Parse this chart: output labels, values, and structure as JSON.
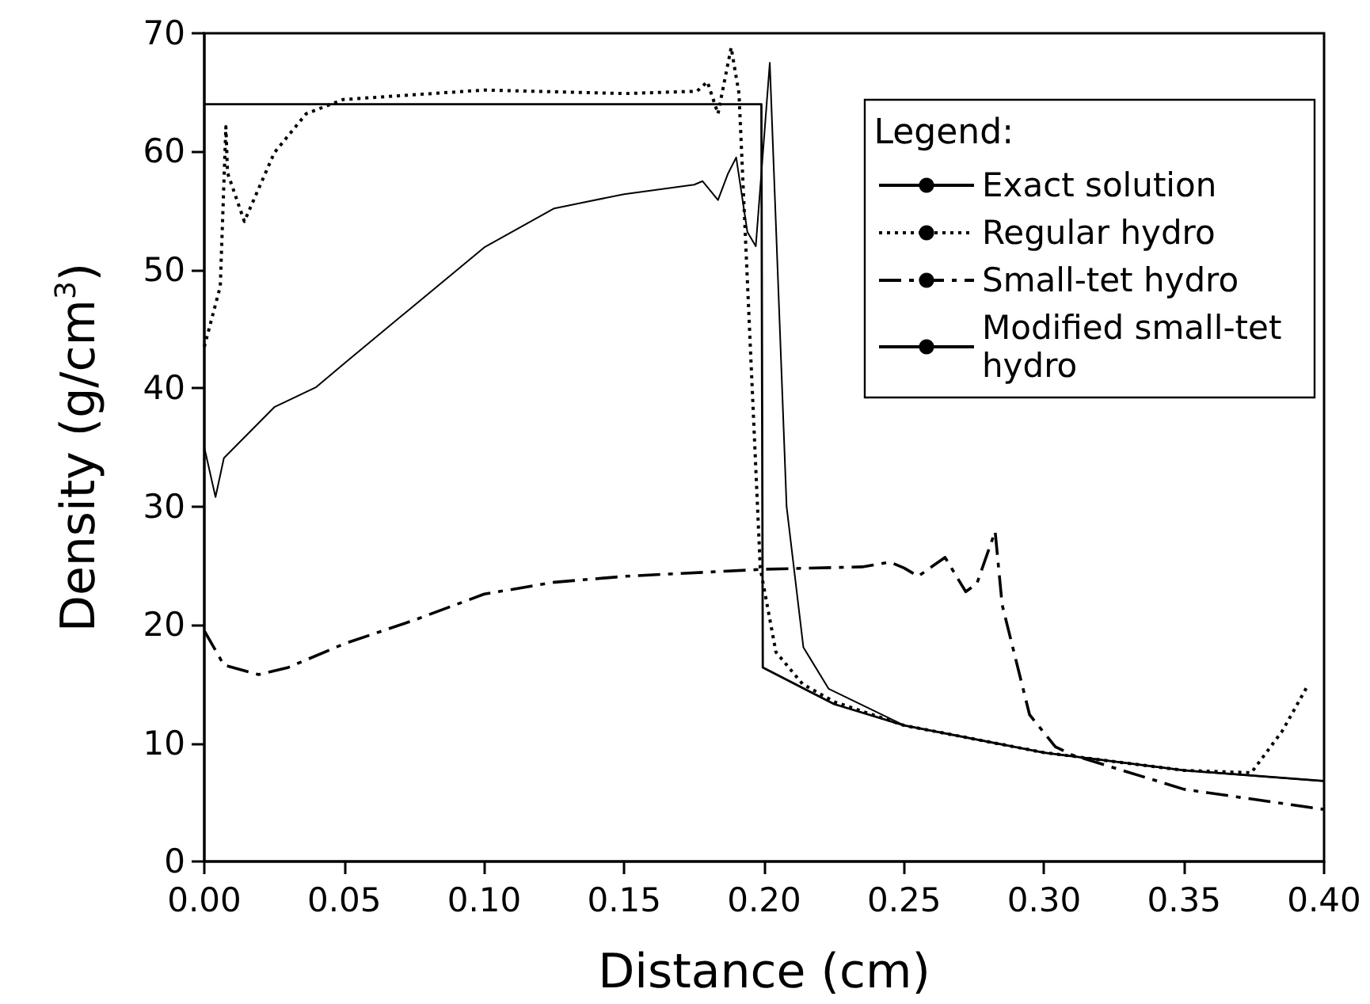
{
  "chart_data": {
    "type": "line",
    "xlabel": "Distance (cm)",
    "ylabel": "Density (g/cm$^{3}$)",
    "legend_title": "Legend:",
    "xlim": [
      0,
      0.4
    ],
    "xticks": [
      {
        "value": 0,
        "label": "0.00"
      },
      0.05,
      {
        "value": 0.1,
        "label": "0.10"
      },
      0.15,
      {
        "value": 0.2,
        "label": "0.20"
      },
      0.25,
      {
        "value": 0.3,
        "label": "0.30"
      },
      0.35,
      {
        "value": 0.4,
        "label": "0.40"
      }
    ],
    "ylim": [
      0,
      70
    ],
    "yticks": [
      0,
      10,
      20,
      30,
      40,
      50,
      60,
      70
    ],
    "grid": false,
    "legend": "top right",
    "marker": "none",
    "series": [
      {
        "name": "Exact solution",
        "color": "#000000",
        "line_style": "solid",
        "x": [
          0,
          0.199,
          0.1995,
          0.225,
          0.25,
          0.3,
          0.35,
          0.4
        ],
        "values": [
          64,
          64,
          16.4,
          13.3,
          11.5,
          9.2,
          7.7,
          6.8
        ]
      },
      {
        "name": "Regular hydro",
        "color": "#000000",
        "line_style": "dotted",
        "x": [
          0,
          0.0057,
          0.0077,
          0.0083,
          0.0143,
          0.025,
          0.0364,
          0.0496,
          0.1,
          0.15,
          0.176,
          0.1797,
          0.1835,
          0.1882,
          0.191,
          0.1986,
          0.2042,
          0.2137,
          0.225,
          0.25,
          0.3,
          0.35,
          0.374,
          0.385,
          0.394
        ],
        "values": [
          43.5,
          48.6,
          62.1,
          58.2,
          54.1,
          59.9,
          63.2,
          64.4,
          65.2,
          64.9,
          65.1,
          65.9,
          63.2,
          68.8,
          64.9,
          24.8,
          17.7,
          15,
          13.5,
          11.5,
          9.2,
          7.7,
          7.5,
          11,
          14.8
        ]
      },
      {
        "name": "Small-tet hydro",
        "color": "#000000",
        "line_style": "dashed",
        "x": [
          0,
          0.007,
          0.0194,
          0.03,
          0.05,
          0.075,
          0.1,
          0.125,
          0.15,
          0.2,
          0.235,
          0.245,
          0.25,
          0.255,
          0.2646,
          0.272,
          0.276,
          0.2825,
          0.285,
          0.2948,
          0.304,
          0.31,
          0.35,
          0.4
        ],
        "values": [
          19.5,
          16.6,
          15.8,
          16.4,
          18.4,
          20.4,
          22.6,
          23.6,
          24.1,
          24.7,
          24.9,
          25.3,
          24.8,
          24.1,
          25.7,
          22.8,
          23.5,
          27.9,
          21.7,
          12.4,
          9.7,
          9,
          6.1,
          4.4
        ]
      },
      {
        "name": "Modified small-tet hydro",
        "color": "#000000",
        "line_style": "solid",
        "x": [
          0,
          0.004,
          0.007,
          0.025,
          0.04,
          0.05,
          0.075,
          0.1,
          0.125,
          0.15,
          0.175,
          0.178,
          0.1835,
          0.187,
          0.19,
          0.194,
          0.197,
          0.202,
          0.208,
          0.214,
          0.223,
          0.25,
          0.3,
          0.35,
          0.4
        ],
        "values": [
          35,
          30.8,
          34.1,
          38.4,
          40.1,
          42.1,
          47,
          51.9,
          55.2,
          56.4,
          57.2,
          57.5,
          55.9,
          58.1,
          59.5,
          53.2,
          52,
          67.5,
          30,
          18.1,
          14.6,
          11.5,
          9.2,
          7.7,
          6.8
        ]
      }
    ]
  }
}
